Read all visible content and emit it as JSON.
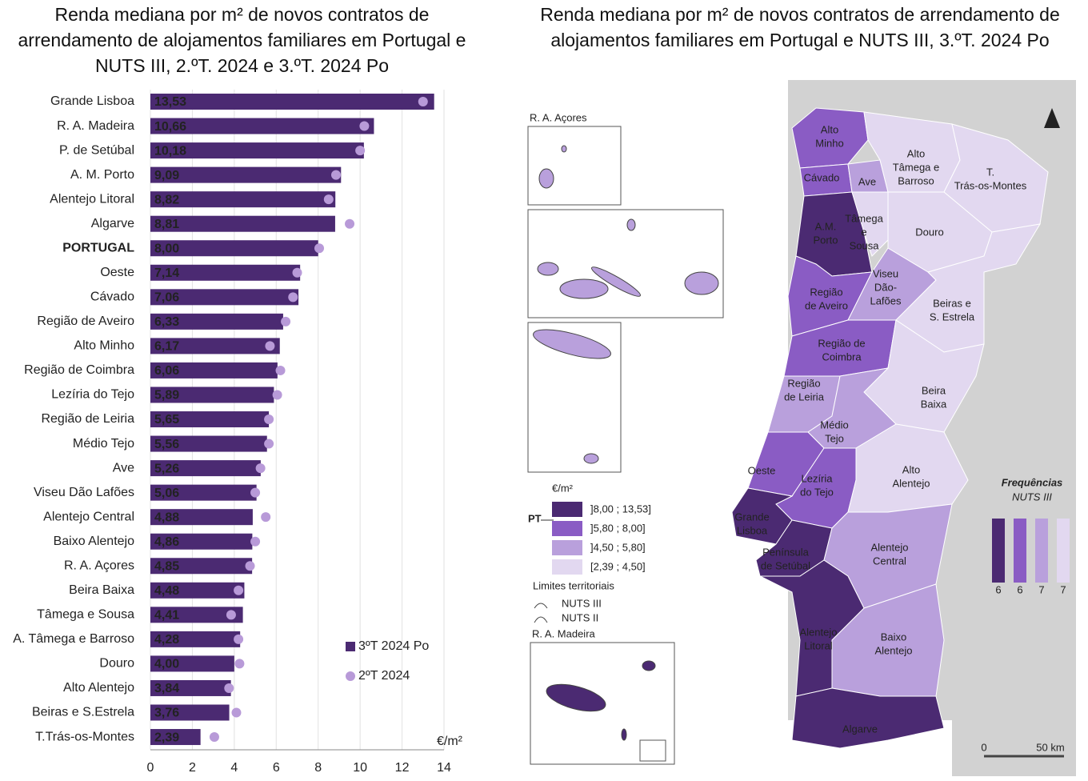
{
  "chart_data": {
    "type": "bar",
    "orientation": "horizontal",
    "title": "Renda mediana por m² de novos contratos de arrendamento de alojamentos familiares em Portugal e NUTS III, 2.ºT. 2024 e 3.ºT. 2024 Po",
    "x_label": "€/m²",
    "categories": [
      "Grande Lisboa",
      "R. A. Madeira",
      "P. de Setúbal",
      "A. M. Porto",
      "Alentejo Litoral",
      "Algarve",
      "PORTUGAL",
      "Oeste",
      "Cávado",
      "Região de Aveiro",
      "Alto Minho",
      "Região de Coimbra",
      "Lezíria do Tejo",
      "Região de Leiria",
      "Médio Tejo",
      "Ave",
      "Viseu Dão Lafões",
      "Alentejo Central",
      "Baixo Alentejo",
      "R. A. Açores",
      "Beira Baixa",
      "Tâmega e Sousa",
      "A. Tâmega e Barroso",
      "Douro",
      "Alto Alentejo",
      "Beiras e S.Estrela",
      "T.Trás-os-Montes"
    ],
    "series": [
      {
        "name": "3ºT 2024 Po",
        "style": "bar",
        "color": "#4b2a72",
        "values": [
          13.53,
          10.66,
          10.18,
          9.09,
          8.82,
          8.81,
          8.0,
          7.14,
          7.06,
          6.33,
          6.17,
          6.06,
          5.89,
          5.65,
          5.56,
          5.26,
          5.06,
          4.88,
          4.86,
          4.85,
          4.48,
          4.41,
          4.28,
          4.0,
          3.84,
          3.76,
          2.39
        ],
        "value_labels": [
          "13,53",
          "10,66",
          "10,18",
          "9,09",
          "8,82",
          "8,81",
          "8,00",
          "7,14",
          "7,06",
          "6,33",
          "6,17",
          "6,06",
          "5,89",
          "5,65",
          "5,56",
          "5,26",
          "5,06",
          "4,88",
          "4,86",
          "4,85",
          "4,48",
          "4,41",
          "4,28",
          "4,00",
          "3,84",
          "3,76",
          "2,39"
        ]
      },
      {
        "name": "2ºT 2024",
        "style": "dot",
        "color": "#b89ad8",
        "values": [
          13.0,
          10.2,
          10.0,
          8.85,
          8.5,
          9.5,
          8.05,
          7.0,
          6.8,
          6.45,
          5.7,
          6.2,
          6.05,
          5.65,
          5.65,
          5.25,
          5.0,
          5.5,
          5.0,
          4.75,
          4.2,
          3.85,
          4.2,
          4.25,
          3.75,
          4.1,
          3.05
        ]
      }
    ],
    "xlim": [
      0,
      14
    ],
    "xticks": [
      0,
      2,
      4,
      6,
      8,
      10,
      12,
      14
    ],
    "grid": true
  },
  "map": {
    "title": "Renda mediana por m² de novos contratos de arrendamento de alojamentos familiares em Portugal e NUTS III, 3.ºT. 2024 Po",
    "azores_label": "R. A. Açores",
    "madeira_label": "R. A. Madeira",
    "legend": {
      "unit": "€/m²",
      "pt_label": "PT",
      "classes": [
        {
          "label": "]8,00 ; 13,53]",
          "color": "#4b2a72"
        },
        {
          "label": "]5,80 ; 8,00]",
          "color": "#8a5cc4"
        },
        {
          "label": "]4,50 ; 5,80]",
          "color": "#b9a0dc"
        },
        {
          "label": "[2,39 ; 4,50]",
          "color": "#e2d8f0"
        }
      ]
    },
    "boundaries": {
      "title": "Limites territoriais",
      "items": [
        "NUTS III",
        "NUTS II"
      ]
    },
    "frequencies": {
      "title": "Frequências",
      "subtitle": "NUTS III",
      "counts": [
        6,
        6,
        7,
        7
      ]
    },
    "scale": [
      "0",
      "50 km"
    ],
    "regions": [
      {
        "label": [
          "Alto",
          "Minho"
        ],
        "class": 1
      },
      {
        "label": [
          "Cávado"
        ],
        "class": 1
      },
      {
        "label": [
          "Ave"
        ],
        "class": 2
      },
      {
        "label": [
          "A.M.",
          "Porto"
        ],
        "class": 0
      },
      {
        "label": [
          "Alto",
          "Tâmega e",
          "Barroso"
        ],
        "class": 3
      },
      {
        "label": [
          "T.",
          "Trás-os-Montes"
        ],
        "class": 3
      },
      {
        "label": [
          "Tâmega",
          "e",
          "Sousa"
        ],
        "class": 3
      },
      {
        "label": [
          "Douro"
        ],
        "class": 3
      },
      {
        "label": [
          "Região",
          "de Aveiro"
        ],
        "class": 1
      },
      {
        "label": [
          "Viseu",
          "Dão-",
          "Lafões"
        ],
        "class": 2
      },
      {
        "label": [
          "Beiras e",
          "S. Estrela"
        ],
        "class": 3
      },
      {
        "label": [
          "Região de",
          "Coimbra"
        ],
        "class": 1
      },
      {
        "label": [
          "Beira",
          "Baixa"
        ],
        "class": 3
      },
      {
        "label": [
          "Região",
          "de Leiria"
        ],
        "class": 2
      },
      {
        "label": [
          "Médio",
          "Tejo"
        ],
        "class": 2
      },
      {
        "label": [
          "Oeste"
        ],
        "class": 1
      },
      {
        "label": [
          "Lezíria",
          "do Tejo"
        ],
        "class": 1
      },
      {
        "label": [
          "Grande",
          "Lisboa"
        ],
        "class": 0
      },
      {
        "label": [
          "Península",
          "de Setúbal"
        ],
        "class": 0
      },
      {
        "label": [
          "Alto",
          "Alentejo"
        ],
        "class": 3
      },
      {
        "label": [
          "Alentejo",
          "Central"
        ],
        "class": 2
      },
      {
        "label": [
          "Alentejo",
          "Litoral"
        ],
        "class": 0
      },
      {
        "label": [
          "Baixo",
          "Alentejo"
        ],
        "class": 2
      },
      {
        "label": [
          "Algarve"
        ],
        "class": 0
      }
    ]
  }
}
